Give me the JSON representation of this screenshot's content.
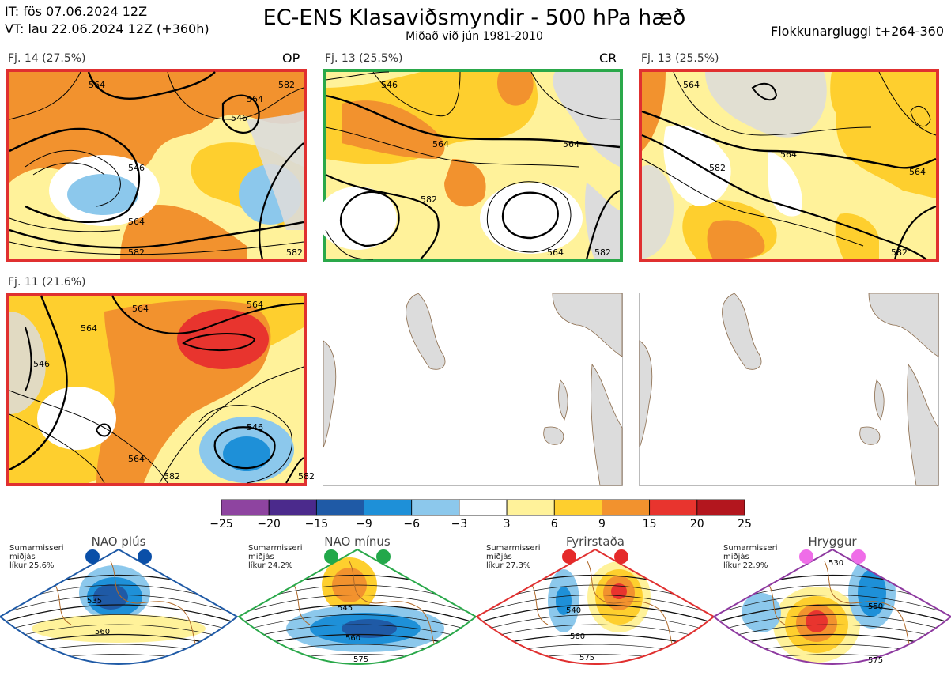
{
  "header": {
    "it_line": "IT: fös 07.06.2024 12Z",
    "vt_line": "VT: lau 22.06.2024 12Z  (+360h)",
    "title": "EC-ENS Klasaviðsmyndir - 500 hPa hæð",
    "subtitle": "Miðað við jún 1981-2010",
    "window": "Flokkunargluggi t+264-360"
  },
  "panels": [
    {
      "label": "Fj. 14 (27.5%)",
      "tag": "OP",
      "border": "#e03030"
    },
    {
      "label": "Fj. 13 (25.5%)",
      "tag": "CR",
      "border": "#2aa84a"
    },
    {
      "label": "Fj. 13 (25.5%)",
      "tag": "",
      "border": "#e03030"
    },
    {
      "label": "Fj. 11 (21.6%)",
      "tag": "",
      "border": "#e03030"
    },
    {
      "label": "",
      "tag": "",
      "border": "#cccccc"
    },
    {
      "label": "",
      "tag": "",
      "border": "#cccccc"
    }
  ],
  "contour_labels": {
    "p1": [
      "564",
      "546",
      "582",
      "546",
      "564",
      "582",
      "564",
      "582"
    ],
    "p2": [
      "546",
      "564",
      "564",
      "582",
      "564",
      "582"
    ],
    "p3": [
      "564",
      "564",
      "582",
      "564",
      "582"
    ],
    "p4": [
      "564",
      "564",
      "546",
      "564",
      "546",
      "564",
      "582",
      "582"
    ]
  },
  "colorbar": {
    "ticks": [
      "−25",
      "−20",
      "−15",
      "−9",
      "−6",
      "−3",
      "3",
      "6",
      "9",
      "15",
      "20",
      "25"
    ],
    "colors": [
      "#8e44a0",
      "#4b2a8c",
      "#1f5aa6",
      "#1e90d8",
      "#8cc8ec",
      "#ffffff",
      "#fff29a",
      "#fecf2e",
      "#f2922e",
      "#e8342e",
      "#b3161e"
    ]
  },
  "regimes": [
    {
      "title": "NAO plús",
      "note": [
        "Sumarmisseri",
        "miðjás",
        "líkur 25,6%"
      ],
      "labels": [
        "535",
        "560"
      ],
      "color": "#1f5aa6",
      "dot": "#0a4fa8"
    },
    {
      "title": "NAO mínus",
      "note": [
        "Sumarmisseri",
        "miðjás",
        "líkur 24,2%"
      ],
      "labels": [
        "545",
        "560",
        "575"
      ],
      "color": "#2aa84a",
      "dot": "#22a84a"
    },
    {
      "title": "Fyrirstaða",
      "note": [
        "Sumarmisseri",
        "miðjás",
        "líkur 27,3%"
      ],
      "labels": [
        "540",
        "560",
        "575"
      ],
      "color": "#e03030",
      "dot": "#e52a2a"
    },
    {
      "title": "Hryggur",
      "note": [
        "Sumarmisseri",
        "miðjás",
        "líkur 22,9%"
      ],
      "labels": [
        "530",
        "550",
        "575"
      ],
      "color": "#8e3aa0",
      "dot": "#ef6de8"
    }
  ]
}
